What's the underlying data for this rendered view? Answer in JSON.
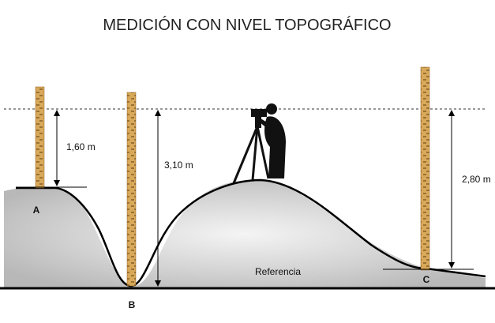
{
  "title": "MEDICIÓN CON NIVEL TOPOGRÁFICO",
  "measurements": [
    {
      "point": "A",
      "distance": "1,60 m"
    },
    {
      "point": "B",
      "distance": "3,10 m"
    },
    {
      "point": "C",
      "distance": "2,80 m"
    }
  ],
  "reference": "Referencia"
}
